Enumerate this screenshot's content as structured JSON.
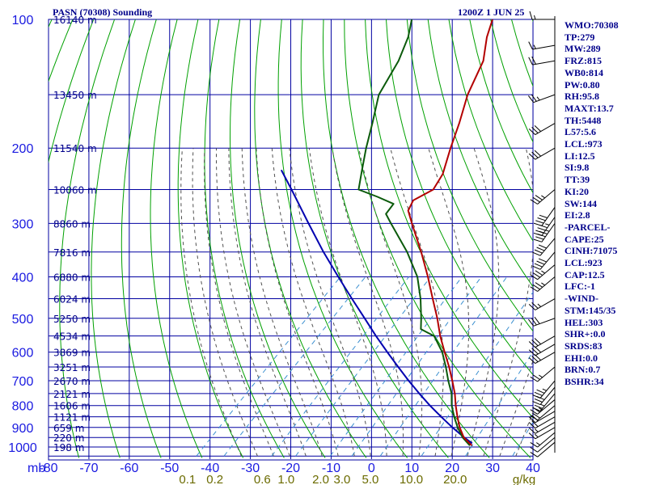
{
  "header": {
    "left": "PASN (70308) Sounding",
    "right": "1200Z  1 JUN 25"
  },
  "colors": {
    "temperature": "#b30000",
    "dewpoint": "#0b5a0b",
    "parcel": "#0000b0",
    "grid": "#0000a0",
    "dry_adiabat": "#00a000",
    "moist_adiabat": "#505050",
    "mixing_ratio": "#3a8fd0",
    "labels": "#00008b",
    "axis_text": "#1a1ae0",
    "mixing_text": "#6b6b00"
  },
  "chart_data": {
    "type": "skew-t",
    "title": "PASN (70308) Sounding",
    "valid_time": "1200Z  1 JUN 25",
    "y_axis_unit": "mb",
    "x_axis_unit": "°C",
    "pressure_levels": [
      100,
      200,
      300,
      400,
      500,
      600,
      700,
      800,
      900,
      1000
    ],
    "pressure_tick_labels": [
      "100",
      "200",
      "300",
      "400",
      "500",
      "600",
      "700",
      "800",
      "900",
      "1000"
    ],
    "temperature_ticks": [
      -80,
      -70,
      -60,
      -50,
      -40,
      -30,
      -20,
      -10,
      0,
      10,
      20,
      30,
      40
    ],
    "temperature_tick_labels": [
      "-80",
      "-70",
      "-60",
      "-50",
      "-40",
      "-30",
      "-20",
      "-10",
      "0",
      "10",
      "20",
      "30",
      "40"
    ],
    "mixing_ratio_ticks": [
      0.1,
      0.2,
      0.6,
      1.0,
      2.0,
      3.0,
      5.0,
      10.0,
      20.0
    ],
    "mixing_ratio_labels": [
      "0.1",
      "0.2",
      "0.6",
      "1.0",
      "2.0",
      "3.0",
      "5.0",
      "10.0",
      "20.0"
    ],
    "mixing_ratio_unit_label": "g/kg",
    "height_labels": [
      {
        "p": 100,
        "label": "16140 m"
      },
      {
        "p": 150,
        "label": "13450 m"
      },
      {
        "p": 200,
        "label": "11540 m"
      },
      {
        "p": 250,
        "label": "10060 m"
      },
      {
        "p": 300,
        "label": "8860 m"
      },
      {
        "p": 350,
        "label": "7816 m"
      },
      {
        "p": 400,
        "label": "6880 m"
      },
      {
        "p": 450,
        "label": "6024 m"
      },
      {
        "p": 500,
        "label": "5250 m"
      },
      {
        "p": 550,
        "label": "4534 m"
      },
      {
        "p": 600,
        "label": "3869 m"
      },
      {
        "p": 650,
        "label": "3251 m"
      },
      {
        "p": 700,
        "label": "2670 m"
      },
      {
        "p": 750,
        "label": "2121 m"
      },
      {
        "p": 800,
        "label": "1606 m"
      },
      {
        "p": 850,
        "label": "1121 m"
      },
      {
        "p": 900,
        "label": "659 m"
      },
      {
        "p": 950,
        "label": "220 m"
      },
      {
        "p": 1000,
        "label": "198 m"
      }
    ],
    "temperature_profile": [
      {
        "p": 992,
        "t": 24.5
      },
      {
        "p": 950,
        "t": 20.5
      },
      {
        "p": 900,
        "t": 17.0
      },
      {
        "p": 850,
        "t": 13.8
      },
      {
        "p": 800,
        "t": 10.6
      },
      {
        "p": 750,
        "t": 7.4
      },
      {
        "p": 700,
        "t": 3.6
      },
      {
        "p": 650,
        "t": -0.6
      },
      {
        "p": 600,
        "t": -5.4
      },
      {
        "p": 550,
        "t": -10.5
      },
      {
        "p": 500,
        "t": -15.6
      },
      {
        "p": 450,
        "t": -21.6
      },
      {
        "p": 400,
        "t": -28.2
      },
      {
        "p": 350,
        "t": -36.0
      },
      {
        "p": 300,
        "t": -45.4
      },
      {
        "p": 280,
        "t": -49.5
      },
      {
        "p": 265,
        "t": -50.8
      },
      {
        "p": 250,
        "t": -48.5
      },
      {
        "p": 230,
        "t": -50.0
      },
      {
        "p": 200,
        "t": -54.5
      },
      {
        "p": 175,
        "t": -58.5
      },
      {
        "p": 150,
        "t": -63.5
      },
      {
        "p": 125,
        "t": -68.0
      },
      {
        "p": 110,
        "t": -73.0
      },
      {
        "p": 100,
        "t": -76.0
      }
    ],
    "dewpoint_profile": [
      {
        "p": 992,
        "t": 24.0
      },
      {
        "p": 950,
        "t": 20.2
      },
      {
        "p": 900,
        "t": 16.5
      },
      {
        "p": 850,
        "t": 13.0
      },
      {
        "p": 800,
        "t": 9.6
      },
      {
        "p": 750,
        "t": 6.6
      },
      {
        "p": 700,
        "t": 2.6
      },
      {
        "p": 650,
        "t": -1.4
      },
      {
        "p": 600,
        "t": -6.0
      },
      {
        "p": 550,
        "t": -12.0
      },
      {
        "p": 530,
        "t": -17.0
      },
      {
        "p": 500,
        "t": -19.6
      },
      {
        "p": 450,
        "t": -24.6
      },
      {
        "p": 400,
        "t": -30.8
      },
      {
        "p": 350,
        "t": -39.5
      },
      {
        "p": 300,
        "t": -50.6
      },
      {
        "p": 285,
        "t": -54.2
      },
      {
        "p": 270,
        "t": -54.8
      },
      {
        "p": 260,
        "t": -60.5
      },
      {
        "p": 250,
        "t": -67.0
      },
      {
        "p": 225,
        "t": -71.0
      },
      {
        "p": 200,
        "t": -75.4
      },
      {
        "p": 175,
        "t": -80.0
      },
      {
        "p": 150,
        "t": -85.5
      },
      {
        "p": 125,
        "t": -89.0
      },
      {
        "p": 110,
        "t": -92.5
      },
      {
        "p": 100,
        "t": -96.0
      }
    ],
    "parcel_profile": [
      {
        "p": 980,
        "t": 24.0
      },
      {
        "p": 950,
        "t": 20.6
      },
      {
        "p": 900,
        "t": 15.2
      },
      {
        "p": 850,
        "t": 9.8
      },
      {
        "p": 800,
        "t": 4.2
      },
      {
        "p": 750,
        "t": -1.4
      },
      {
        "p": 700,
        "t": -7.2
      },
      {
        "p": 650,
        "t": -13.2
      },
      {
        "p": 600,
        "t": -19.6
      },
      {
        "p": 550,
        "t": -26.4
      },
      {
        "p": 500,
        "t": -33.6
      },
      {
        "p": 450,
        "t": -41.6
      },
      {
        "p": 400,
        "t": -50.4
      },
      {
        "p": 350,
        "t": -60.2
      },
      {
        "p": 300,
        "t": -71.0
      },
      {
        "p": 250,
        "t": -83.6
      },
      {
        "p": 225,
        "t": -91.0
      }
    ],
    "wind_barbs": [
      {
        "p": 975,
        "dir": 230,
        "spd": 10
      },
      {
        "p": 950,
        "dir": 230,
        "spd": 10
      },
      {
        "p": 925,
        "dir": 230,
        "spd": 15
      },
      {
        "p": 900,
        "dir": 240,
        "spd": 15
      },
      {
        "p": 875,
        "dir": 240,
        "spd": 15
      },
      {
        "p": 850,
        "dir": 240,
        "spd": 20
      },
      {
        "p": 825,
        "dir": 240,
        "spd": 20
      },
      {
        "p": 800,
        "dir": 230,
        "spd": 20
      },
      {
        "p": 775,
        "dir": 230,
        "spd": 25
      },
      {
        "p": 750,
        "dir": 220,
        "spd": 25
      },
      {
        "p": 725,
        "dir": 220,
        "spd": 30
      },
      {
        "p": 700,
        "dir": 220,
        "spd": 35
      },
      {
        "p": 650,
        "dir": 230,
        "spd": 25
      },
      {
        "p": 600,
        "dir": 240,
        "spd": 30
      },
      {
        "p": 575,
        "dir": 240,
        "spd": 30
      },
      {
        "p": 550,
        "dir": 240,
        "spd": 30
      },
      {
        "p": 500,
        "dir": 250,
        "spd": 30
      },
      {
        "p": 450,
        "dir": 240,
        "spd": 25
      },
      {
        "p": 400,
        "dir": 230,
        "spd": 35
      },
      {
        "p": 375,
        "dir": 230,
        "spd": 35
      },
      {
        "p": 350,
        "dir": 220,
        "spd": 40
      },
      {
        "p": 325,
        "dir": 220,
        "spd": 40
      },
      {
        "p": 300,
        "dir": 215,
        "spd": 45
      },
      {
        "p": 290,
        "dir": 215,
        "spd": 45
      },
      {
        "p": 275,
        "dir": 215,
        "spd": 40
      },
      {
        "p": 250,
        "dir": 230,
        "spd": 35
      },
      {
        "p": 200,
        "dir": 240,
        "spd": 30
      },
      {
        "p": 175,
        "dir": 240,
        "spd": 30
      },
      {
        "p": 150,
        "dir": 250,
        "spd": 25
      },
      {
        "p": 125,
        "dir": 260,
        "spd": 20
      },
      {
        "p": 115,
        "dir": 260,
        "spd": 15
      },
      {
        "p": 100,
        "dir": 270,
        "spd": 15
      }
    ]
  },
  "stats": [
    "WMO:70308",
    "TP:279",
    "MW:289",
    "FRZ:815",
    "WB0:814",
    "PW:0.80",
    "RH:95.8",
    "MAXT:13.7",
    "TH:5448",
    "L57:5.6",
    "LCL:973",
    "LI:12.5",
    "SI:9.8",
    "TT:39",
    "KI:20",
    "SW:144",
    "EI:2.8",
    "-PARCEL-",
    "CAPE:25",
    "CINH:71075",
    "LCL:923",
    "CAP:12.5",
    "LFC:-1",
    "-WIND-",
    "STM:145/35",
    "HEL:303",
    "SHR+:0.0",
    "SRDS:83",
    "EHI:0.0",
    "BRN:0.7",
    "BSHR:34"
  ]
}
